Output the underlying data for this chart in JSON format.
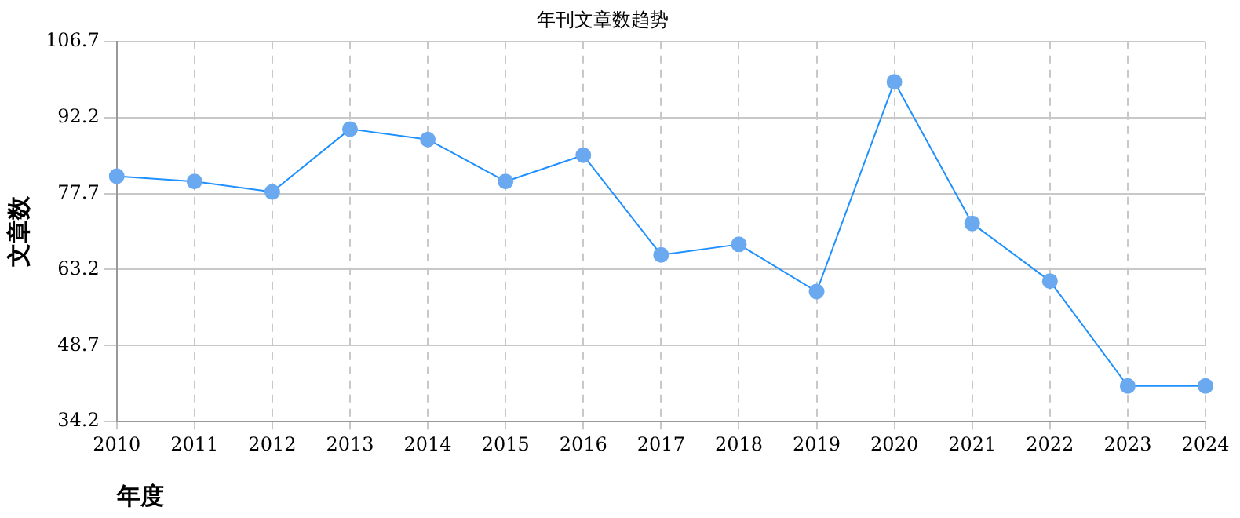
{
  "chart_data": {
    "type": "line",
    "title": "年刊文章数趋势",
    "xlabel": "年度",
    "ylabel": "文章数",
    "categories": [
      "2010",
      "2011",
      "2012",
      "2013",
      "2014",
      "2015",
      "2016",
      "2017",
      "2018",
      "2019",
      "2020",
      "2021",
      "2022",
      "2023",
      "2024"
    ],
    "series": [
      {
        "color": "#1e90ff",
        "values": [
          81,
          80,
          78,
          90,
          88,
          80,
          85,
          66,
          68,
          59,
          99,
          72,
          61,
          41,
          41
        ]
      }
    ],
    "ylim": [
      34.2,
      106.7
    ],
    "yticks": [
      34.2,
      48.7,
      63.2,
      77.7,
      92.2,
      106.7
    ],
    "grid": true,
    "legend": false,
    "marker": "circle",
    "line_style": "solid"
  }
}
